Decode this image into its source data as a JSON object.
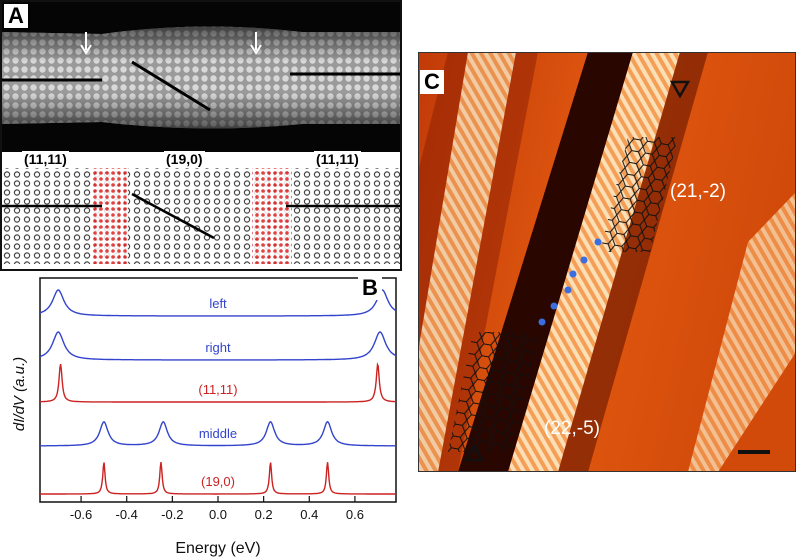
{
  "panels": {
    "a": {
      "label": "A",
      "chirality_left": "(11,11)",
      "chirality_middle": "(19,0)",
      "chirality_right": "(11,11)"
    },
    "b": {
      "label": "B",
      "ylabel": "dI/dV (a.u.)",
      "xlabel": "Energy (eV)"
    },
    "c": {
      "label": "C",
      "annotation_upper": "(21,-2)",
      "annotation_lower": "(22,-5)"
    }
  },
  "chart_data": {
    "type": "line",
    "xlabel": "Energy (eV)",
    "ylabel": "dI/dV (a.u.)",
    "xlim": [
      -0.78,
      0.78
    ],
    "xticks": [
      "-0.6",
      "-0.4",
      "-0.2",
      "0.0",
      "0.2",
      "0.4",
      "0.6"
    ],
    "series": [
      {
        "name": "left",
        "color": "#3344cc",
        "peaks": [
          -0.7,
          0.72
        ]
      },
      {
        "name": "right",
        "color": "#3344cc",
        "peaks": [
          -0.7,
          0.71
        ]
      },
      {
        "name": "(11,11)",
        "color": "#cc2222",
        "peaks": [
          -0.69,
          0.7
        ]
      },
      {
        "name": "middle",
        "color": "#3344cc",
        "peaks": [
          -0.5,
          -0.24,
          0.23,
          0.48
        ]
      },
      {
        "name": "(19,0)",
        "color": "#cc2222",
        "peaks": [
          -0.5,
          -0.25,
          0.23,
          0.48
        ]
      }
    ]
  }
}
